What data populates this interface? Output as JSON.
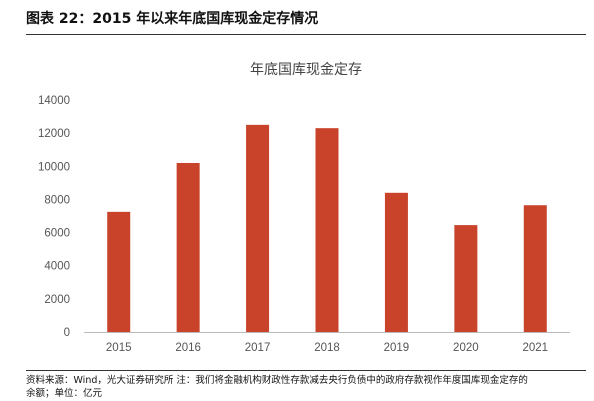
{
  "figure_title": "图表 22：2015 年以来年底国库现金定存情况",
  "footer": {
    "line1": "资料来源：Wind，光大证券研究所  注：我们将金融机构财政性存款减去央行负债中的政府存款视作年度国库现金定存的",
    "line2": "余额；单位：亿元"
  },
  "chart_data": {
    "type": "bar",
    "title": "年底国库现金定存",
    "categories": [
      "2015",
      "2016",
      "2017",
      "2018",
      "2019",
      "2020",
      "2021"
    ],
    "values": [
      7250,
      10200,
      12500,
      12300,
      8400,
      6450,
      7650
    ],
    "ylim": [
      0,
      14000
    ],
    "yticks": [
      "0",
      "2000",
      "4000",
      "6000",
      "8000",
      "10000",
      "12000",
      "14000"
    ],
    "bar_color": "#c9432a",
    "grid": false
  }
}
